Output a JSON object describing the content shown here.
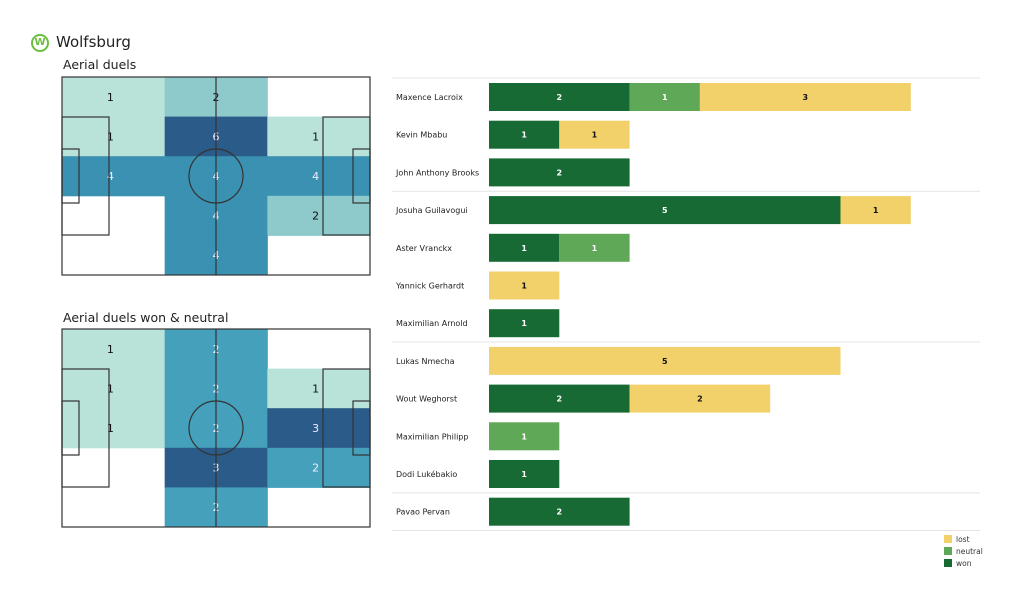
{
  "header": {
    "team": "Wolfsburg",
    "logo_letter": "W",
    "logo_color": "#6cbf3f"
  },
  "chart_data": [
    {
      "type": "heatmap",
      "title": "Aerial duels",
      "rows": 5,
      "cols": 3,
      "values": [
        [
          1,
          2,
          null
        ],
        [
          1,
          6,
          1
        ],
        [
          4,
          4,
          4
        ],
        [
          null,
          4,
          2
        ],
        [
          null,
          4,
          null
        ]
      ],
      "colors": {
        "1": "#b9e3d9",
        "2": "#8ecacc",
        "4": "#3a91b2",
        "6": "#2b5b88"
      }
    },
    {
      "type": "heatmap",
      "title": "Aerial duels won & neutral",
      "rows": 5,
      "cols": 3,
      "values": [
        [
          1,
          2,
          null
        ],
        [
          1,
          2,
          1
        ],
        [
          1,
          2,
          3
        ],
        [
          null,
          3,
          2
        ],
        [
          null,
          2,
          null
        ]
      ],
      "colors": {
        "1": "#b9e3d9",
        "2": "#44a0bb",
        "3": "#2b5b88"
      }
    },
    {
      "type": "bar",
      "stacked": true,
      "orientation": "horizontal",
      "categories": [
        "Maxence Lacroix",
        "Kevin Mbabu",
        "John Anthony Brooks",
        "Josuha Guilavogui",
        "Aster Vranckx",
        "Yannick Gerhardt",
        "Maximilian Arnold",
        "Lukas Nmecha",
        "Wout Weghorst",
        "Maximilian Philipp",
        "Dodi Lukébakio",
        "Pavao Pervan"
      ],
      "series": [
        {
          "name": "won",
          "color": "#186a35",
          "values": [
            2,
            1,
            2,
            5,
            1,
            0,
            1,
            0,
            2,
            0,
            1,
            2
          ]
        },
        {
          "name": "neutral",
          "color": "#5fa857",
          "values": [
            1,
            0,
            0,
            0,
            1,
            0,
            0,
            0,
            0,
            1,
            0,
            0
          ]
        },
        {
          "name": "lost",
          "color": "#f2d16b",
          "values": [
            3,
            1,
            0,
            1,
            0,
            1,
            0,
            5,
            2,
            0,
            0,
            0
          ]
        }
      ],
      "legend": [
        "lost",
        "neutral",
        "won"
      ],
      "legend_position": "bottom-right",
      "group_separators_after": [
        2,
        6,
        10
      ]
    }
  ]
}
